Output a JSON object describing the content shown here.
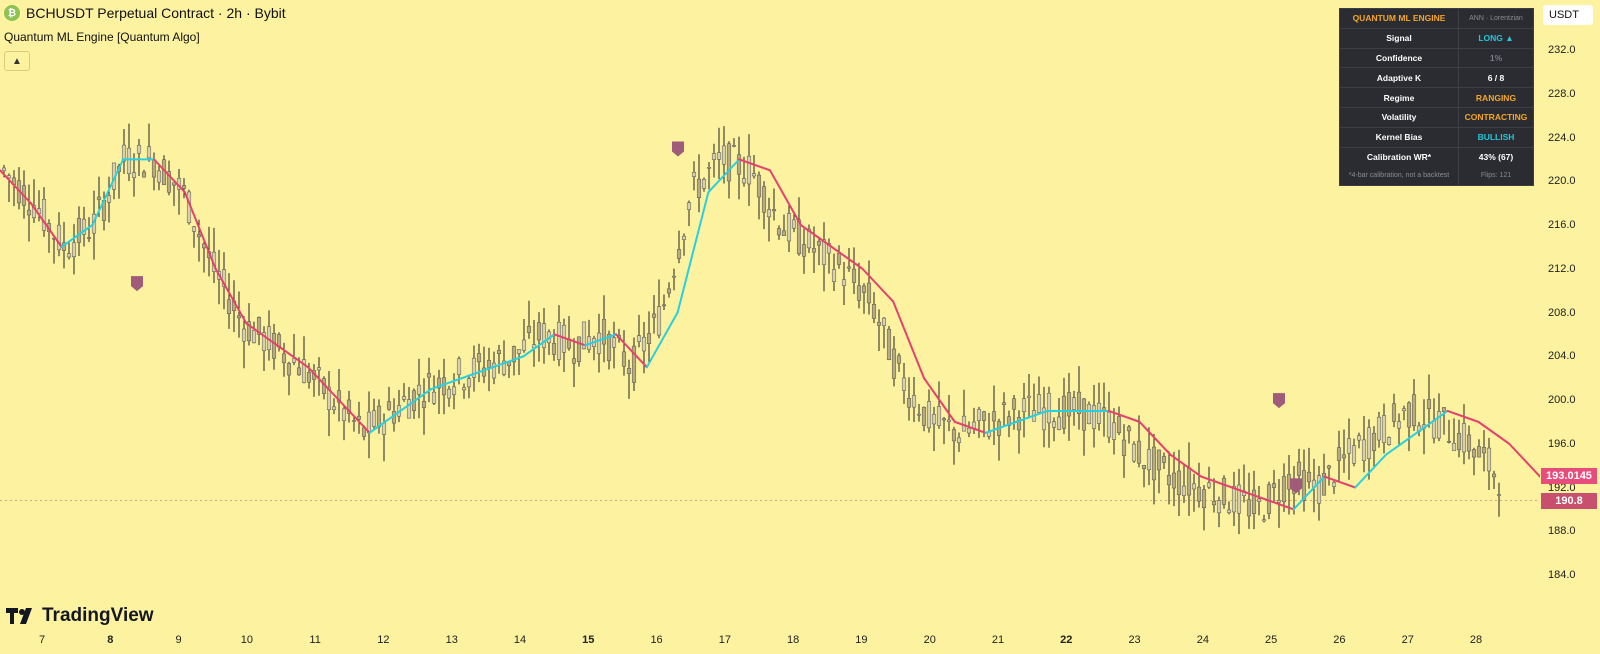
{
  "header": {
    "coin_icon": "bitcoin-cash-icon",
    "title": "BCHUSDT Perpetual Contract · 2h · Bybit",
    "indicator": "Quantum ML Engine [Quantum Algo]",
    "collapse_icon": "chevron-up-icon"
  },
  "price_axis": {
    "currency": "USDT",
    "ticks": [
      "232.0",
      "228.0",
      "224.0",
      "220.0",
      "216.0",
      "212.0",
      "208.0",
      "204.0",
      "200.0",
      "196.0",
      "192.0",
      "188.0",
      "184.0"
    ],
    "labels": [
      {
        "text": "193.0145",
        "color": "#e84c7a"
      },
      {
        "text": "190.8",
        "color": "#c94f6f"
      }
    ]
  },
  "time_axis": {
    "ticks": [
      "7",
      "8",
      "9",
      "10",
      "11",
      "12",
      "13",
      "14",
      "15",
      "16",
      "17",
      "18",
      "19",
      "20",
      "21",
      "22",
      "23",
      "24",
      "25",
      "26",
      "27",
      "28"
    ],
    "bold": [
      "8",
      "15",
      "22"
    ]
  },
  "panel": {
    "title": "QUANTUM ML ENGINE",
    "subtitle": "ANN · Lorentzian",
    "rows": [
      {
        "label": "Signal",
        "value": "LONG ▲",
        "color": "#26c6da"
      },
      {
        "label": "Confidence",
        "value": "1%",
        "color": "#787b86"
      },
      {
        "label": "Adaptive K",
        "value": "6 / 8",
        "color": "#ffffff"
      },
      {
        "label": "Regime",
        "value": "RANGING",
        "color": "#f5a623"
      },
      {
        "label": "Volatility",
        "value": "CONTRACTING",
        "color": "#f5a623"
      },
      {
        "label": "Kernel Bias",
        "value": "BULLISH",
        "color": "#26c6da"
      },
      {
        "label": "Calibration WR*",
        "value": "43%  (67)",
        "color": "#ffffff"
      }
    ],
    "footer_left": "*4-bar calibration, not a backtest",
    "footer_right": "Flips: 121",
    "title_color": "#f5a623"
  },
  "logo": {
    "text": "TradingView",
    "icon": "tradingview-logo-icon"
  },
  "chart_data": {
    "type": "line",
    "title": "BCHUSDT Perpetual Contract · 2h · Bybit",
    "ylim": [
      182,
      233
    ],
    "x_ticks": [
      "7",
      "8",
      "9",
      "10",
      "11",
      "12",
      "13",
      "14",
      "15",
      "16",
      "17",
      "18",
      "19",
      "20",
      "21",
      "22",
      "23",
      "24",
      "25",
      "26",
      "27",
      "28"
    ],
    "series": [
      {
        "name": "Quantum ML Engine kernel",
        "values": [
          221,
          218,
          214,
          216,
          222,
          222,
          219,
          212,
          207,
          205,
          203,
          200,
          197,
          199,
          201,
          202,
          203,
          204,
          206,
          205,
          206,
          203,
          208,
          219,
          222,
          221,
          216,
          214,
          212,
          209,
          202,
          198,
          197,
          198,
          199,
          199,
          199,
          198,
          195,
          193,
          192,
          191,
          190,
          193,
          192,
          195,
          197,
          199,
          198,
          196,
          193
        ]
      }
    ],
    "signal_markers": [
      "short",
      "short",
      "short",
      "short"
    ]
  }
}
